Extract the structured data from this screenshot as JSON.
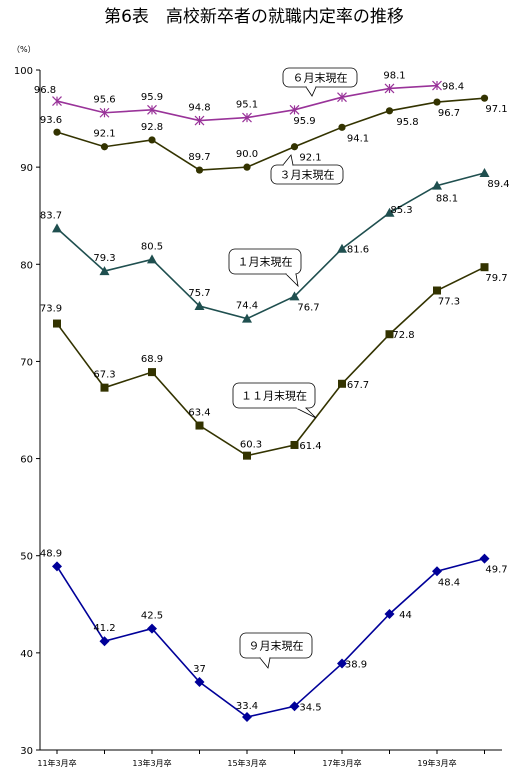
{
  "chart_data": {
    "type": "line",
    "title": "第6表　高校新卒者の就職内定率の推移",
    "ylabel": "（%）",
    "xlabel": "",
    "ylim": [
      30,
      100
    ],
    "yticks": [
      30,
      40,
      50,
      60,
      70,
      80,
      90,
      100
    ],
    "grid": false,
    "x_count": 10,
    "x_tick_labels": [
      {
        "index": 0,
        "label": "11年3月卒"
      },
      {
        "index": 2,
        "label": "13年3月卒"
      },
      {
        "index": 4,
        "label": "15年3月卒"
      },
      {
        "index": 6,
        "label": "17年3月卒"
      },
      {
        "index": 8,
        "label": "19年3月卒"
      }
    ],
    "series": [
      {
        "key": "jun",
        "name": "６月末現在",
        "color": "#993399",
        "marker": "star",
        "values": [
          96.8,
          95.6,
          95.9,
          94.8,
          95.1,
          95.9,
          97.2,
          98.1,
          98.4,
          null
        ],
        "labels": [
          "96.8",
          "95.6",
          "95.9",
          "94.8",
          "95.1",
          "95.9",
          "97.2",
          "98.1",
          "98.4",
          ""
        ]
      },
      {
        "key": "mar",
        "name": "３月末現在",
        "color": "#333300",
        "marker": "circle",
        "values": [
          93.6,
          92.1,
          92.8,
          89.7,
          90.0,
          92.1,
          94.1,
          95.8,
          96.7,
          97.1
        ],
        "labels": [
          "93.6",
          "92.1",
          "92.8",
          "89.7",
          "90.0",
          "92.1",
          "94.1",
          "95.8",
          "96.7",
          "97.1"
        ]
      },
      {
        "key": "jan",
        "name": "１月末現在",
        "color": "#1f4f4f",
        "marker": "triangle",
        "values": [
          83.7,
          79.3,
          80.5,
          75.7,
          74.4,
          76.7,
          81.6,
          85.3,
          88.1,
          89.4
        ],
        "labels": [
          "83.7",
          "79.3",
          "80.5",
          "75.7",
          "74.4",
          "76.7",
          "81.6",
          "85.3",
          "88.1",
          "89.4"
        ]
      },
      {
        "key": "nov",
        "name": "１１月末現在",
        "color": "#333300",
        "marker": "square",
        "values": [
          73.9,
          67.3,
          68.9,
          63.4,
          60.3,
          61.4,
          67.7,
          72.8,
          77.3,
          79.7
        ],
        "labels": [
          "73.9",
          "67.3",
          "68.9",
          "63.4",
          "60.3",
          "61.4",
          "67.7",
          "72.8",
          "77.3",
          "79.7"
        ]
      },
      {
        "key": "sep",
        "name": "９月末現在",
        "color": "#000099",
        "marker": "diamond",
        "values": [
          48.9,
          41.2,
          42.5,
          37.0,
          33.4,
          34.5,
          38.9,
          44.0,
          48.4,
          49.7
        ],
        "labels": [
          "48.9",
          "41.2",
          "42.5",
          "37",
          "33.4",
          "34.5",
          "38.9",
          "44",
          "48.4",
          "49.7"
        ]
      }
    ]
  }
}
